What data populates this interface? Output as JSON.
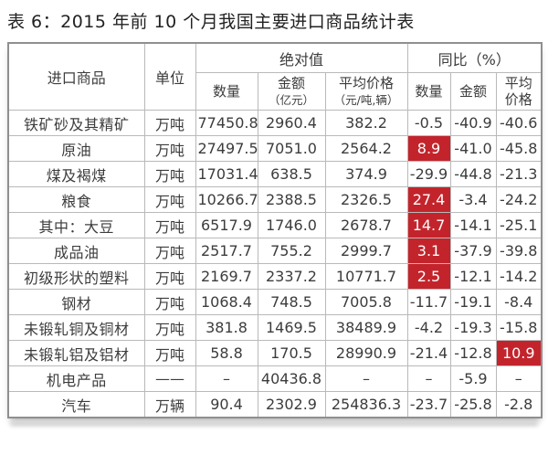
{
  "title": "表 6：2015 年前 10 个月我国主要进口商品统计表",
  "colors": {
    "highlight_bg": "#c3242c",
    "highlight_text": "#ffffff"
  },
  "table": {
    "header": {
      "commodity": "进口商品",
      "unit": "单位",
      "absolute_group": "绝对值",
      "yoy_group": "同比（%）",
      "abs_qty": "数量",
      "abs_amount_line1": "金额",
      "abs_amount_line2": "（亿元）",
      "abs_price_line1": "平均价格",
      "abs_price_line2": "（元/吨,辆）",
      "yoy_qty": "数量",
      "yoy_amount": "金额",
      "yoy_price_line1": "平均",
      "yoy_price_line2": "价格"
    },
    "rows": [
      {
        "cells": [
          "铁矿砂及其精矿",
          "万吨",
          "77450.8",
          "2960.4",
          "382.2",
          "-0.5",
          "-40.9",
          "-40.6"
        ],
        "red": []
      },
      {
        "cells": [
          "原油",
          "万吨",
          "27497.5",
          "7051.0",
          "2564.2",
          "8.9",
          "-41.0",
          "-45.8"
        ],
        "red": [
          5
        ]
      },
      {
        "cells": [
          "煤及褐煤",
          "万吨",
          "17031.4",
          "638.5",
          "374.9",
          "-29.9",
          "-44.8",
          "-21.3"
        ],
        "red": []
      },
      {
        "cells": [
          "粮食",
          "万吨",
          "10266.7",
          "2388.5",
          "2326.5",
          "27.4",
          "-3.4",
          "-24.2"
        ],
        "red": [
          5
        ]
      },
      {
        "cells": [
          "其中：大豆",
          "万吨",
          "6517.9",
          "1746.0",
          "2678.7",
          "14.7",
          "-14.1",
          "-25.1"
        ],
        "red": [
          5
        ]
      },
      {
        "cells": [
          "成品油",
          "万吨",
          "2517.7",
          "755.2",
          "2999.7",
          "3.1",
          "-37.9",
          "-39.8"
        ],
        "red": [
          5
        ]
      },
      {
        "cells": [
          "初级形状的塑料",
          "万吨",
          "2169.7",
          "2337.2",
          "10771.7",
          "2.5",
          "-12.1",
          "-14.2"
        ],
        "red": [
          5
        ]
      },
      {
        "cells": [
          "钢材",
          "万吨",
          "1068.4",
          "748.5",
          "7005.8",
          "-11.7",
          "-19.1",
          "-8.4"
        ],
        "red": []
      },
      {
        "cells": [
          "未锻轧铜及铜材",
          "万吨",
          "381.8",
          "1469.5",
          "38489.9",
          "-4.2",
          "-19.3",
          "-15.8"
        ],
        "red": []
      },
      {
        "cells": [
          "未锻轧铝及铝材",
          "万吨",
          "58.8",
          "170.5",
          "28990.9",
          "-21.4",
          "-12.8",
          "10.9"
        ],
        "red": [
          7
        ]
      },
      {
        "cells": [
          "机电产品",
          "——",
          "–",
          "40436.8",
          "–",
          "–",
          "-5.9",
          "–"
        ],
        "red": []
      },
      {
        "cells": [
          "汽车",
          "万辆",
          "90.4",
          "2302.9",
          "254836.3",
          "-23.7",
          "-25.8",
          "-2.8"
        ],
        "red": []
      }
    ]
  }
}
